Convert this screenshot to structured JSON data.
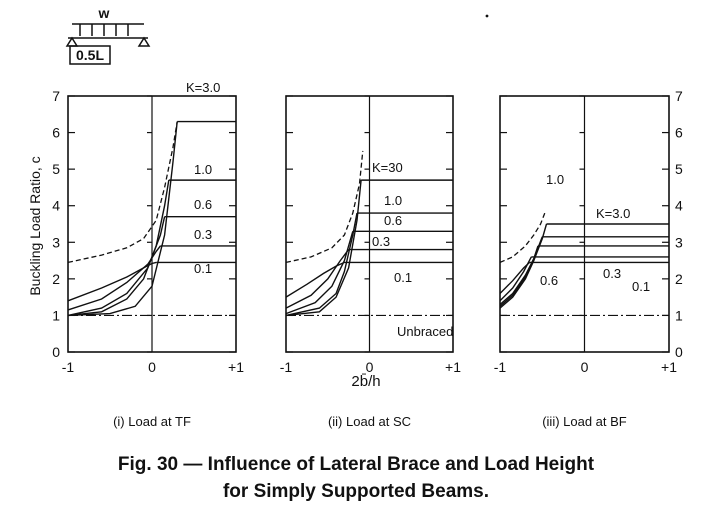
{
  "figure": {
    "caption_line1": "Fig. 30 — Influence of Lateral Brace and Load Height",
    "caption_line2": "for Simply Supported Beams.",
    "load_label": "w",
    "load_span_label": "0.5L",
    "shared_xlabel": "2b̄/h",
    "shared_ylabel": "Buckling Load Ratio, c",
    "ink_color": "#111111"
  },
  "chart_data": [
    {
      "type": "line",
      "subtitle": "(i) Load at TF",
      "xlabel": "2b̄/h",
      "ylabel": "Buckling Load Ratio, c",
      "xlim": [
        -1,
        1
      ],
      "ylim": [
        0,
        7
      ],
      "xticks": [
        "-1",
        "0",
        "+1"
      ],
      "yticks": [
        "0",
        "1",
        "2",
        "3",
        "4",
        "5",
        "6",
        "7"
      ],
      "unbraced_value": 1.0,
      "unbraced_label": "",
      "series": [
        {
          "name": "K=3.0",
          "plateau": 6.3,
          "x": [
            -1,
            -0.5,
            -0.2,
            0,
            0.15,
            0.25,
            0.3
          ],
          "y": [
            1.0,
            1.05,
            1.25,
            1.8,
            3.2,
            5.2,
            6.3
          ]
        },
        {
          "name": "1.0",
          "plateau": 4.7,
          "x": [
            -1,
            -0.6,
            -0.3,
            -0.1,
            0.05,
            0.15,
            0.2
          ],
          "y": [
            1.0,
            1.1,
            1.45,
            2.0,
            2.9,
            4.0,
            4.7
          ]
        },
        {
          "name": "0.6",
          "plateau": 3.7,
          "x": [
            -1,
            -0.6,
            -0.3,
            -0.05,
            0.1,
            0.15
          ],
          "y": [
            1.0,
            1.2,
            1.6,
            2.3,
            3.2,
            3.7
          ]
        },
        {
          "name": "0.3",
          "plateau": 2.9,
          "x": [
            -1,
            -0.6,
            -0.3,
            -0.05,
            0.05,
            0.1
          ],
          "y": [
            1.15,
            1.45,
            1.9,
            2.4,
            2.75,
            2.9
          ]
        },
        {
          "name": "0.1",
          "plateau": 2.45,
          "x": [
            -1,
            -0.6,
            -0.3,
            -0.1,
            0.0,
            0.05
          ],
          "y": [
            1.4,
            1.75,
            2.05,
            2.3,
            2.42,
            2.45
          ]
        }
      ],
      "envelope": {
        "x": [
          -1,
          -0.6,
          -0.3,
          -0.1,
          0.05,
          0.15,
          0.25,
          0.3
        ],
        "y": [
          2.45,
          2.65,
          2.85,
          3.1,
          3.6,
          4.5,
          5.6,
          6.3
        ]
      }
    },
    {
      "type": "line",
      "subtitle": "(ii) Load at SC",
      "xlim": [
        -1,
        1
      ],
      "ylim": [
        0,
        7
      ],
      "xticks": [
        "-1",
        "0",
        "+1"
      ],
      "yticks": [],
      "unbraced_value": 1.0,
      "unbraced_label": "Unbraced",
      "series": [
        {
          "name": "K=30",
          "plateau": 4.7,
          "x": [
            -1,
            -0.6,
            -0.4,
            -0.25,
            -0.15,
            -0.1
          ],
          "y": [
            1.0,
            1.1,
            1.5,
            2.3,
            3.6,
            4.7
          ]
        },
        {
          "name": "1.0",
          "plateau": 3.8,
          "x": [
            -1,
            -0.6,
            -0.4,
            -0.3,
            -0.2,
            -0.15
          ],
          "y": [
            1.0,
            1.2,
            1.6,
            2.2,
            3.2,
            3.8
          ]
        },
        {
          "name": "0.6",
          "plateau": 3.3,
          "x": [
            -1,
            -0.65,
            -0.45,
            -0.3,
            -0.2
          ],
          "y": [
            1.05,
            1.35,
            1.8,
            2.5,
            3.3
          ]
        },
        {
          "name": "0.3",
          "plateau": 2.8,
          "x": [
            -1,
            -0.7,
            -0.5,
            -0.35,
            -0.25
          ],
          "y": [
            1.2,
            1.55,
            2.0,
            2.5,
            2.8
          ]
        },
        {
          "name": "0.1",
          "plateau": 2.45,
          "x": [
            -1,
            -0.75,
            -0.55,
            -0.4,
            -0.3
          ],
          "y": [
            1.5,
            1.85,
            2.15,
            2.35,
            2.45
          ]
        }
      ],
      "envelope": {
        "x": [
          -1,
          -0.7,
          -0.45,
          -0.3,
          -0.2,
          -0.12,
          -0.08
        ],
        "y": [
          2.45,
          2.6,
          2.85,
          3.2,
          3.8,
          4.6,
          5.5
        ]
      }
    },
    {
      "type": "line",
      "subtitle": "(iii) Load at BF",
      "xlim": [
        -1,
        1
      ],
      "ylim": [
        0,
        7
      ],
      "xticks": [
        "-1",
        "0",
        "+1"
      ],
      "yticks": [
        "0",
        "1",
        "2",
        "3",
        "4",
        "5",
        "6",
        "7"
      ],
      "unbraced_value": 1.0,
      "unbraced_label": "",
      "series": [
        {
          "name": "K=3.0",
          "plateau": 3.5,
          "x": [
            -1,
            -0.85,
            -0.7,
            -0.6,
            -0.5,
            -0.45
          ],
          "y": [
            1.2,
            1.5,
            2.0,
            2.5,
            3.1,
            3.5
          ]
        },
        {
          "name": "1.0",
          "plateau": 3.15,
          "x": [
            -1,
            -0.85,
            -0.7,
            -0.6,
            -0.5
          ],
          "y": [
            1.25,
            1.55,
            2.05,
            2.55,
            3.15
          ]
        },
        {
          "name": "0.6",
          "plateau": 2.9,
          "x": [
            -1,
            -0.85,
            -0.7,
            -0.6,
            -0.55
          ],
          "y": [
            1.3,
            1.6,
            2.1,
            2.55,
            2.9
          ]
        },
        {
          "name": "0.3",
          "plateau": 2.6,
          "x": [
            -1,
            -0.85,
            -0.72,
            -0.63
          ],
          "y": [
            1.4,
            1.75,
            2.2,
            2.6
          ]
        },
        {
          "name": "0.1",
          "plateau": 2.45,
          "x": [
            -1,
            -0.85,
            -0.72,
            -0.65
          ],
          "y": [
            1.6,
            1.95,
            2.3,
            2.45
          ]
        }
      ],
      "envelope": {
        "x": [
          -1,
          -0.85,
          -0.7,
          -0.6,
          -0.52,
          -0.47
        ],
        "y": [
          2.45,
          2.6,
          2.9,
          3.2,
          3.5,
          3.8
        ]
      }
    }
  ]
}
